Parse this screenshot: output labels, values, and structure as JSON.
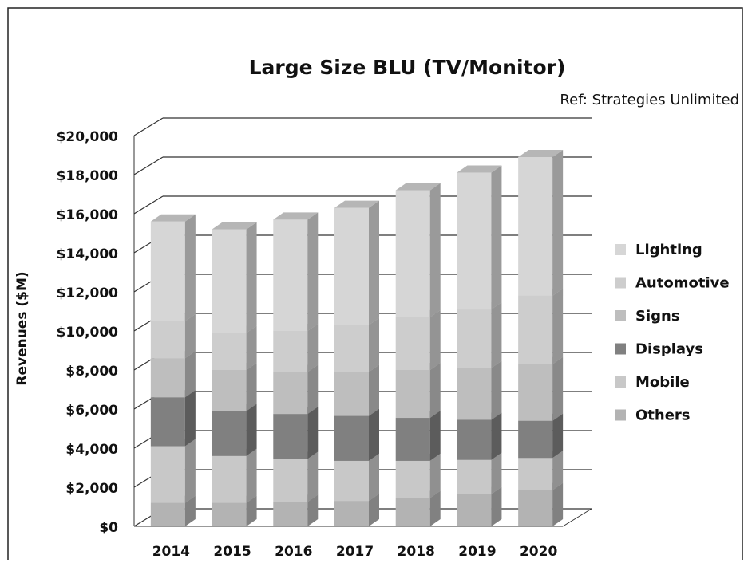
{
  "chart_data": {
    "type": "bar3d_stacked",
    "title": "Large Size BLU (TV/Monitor)",
    "annotation": "Ref: Strategies Unlimited",
    "y_label": "Revenues ($M)",
    "categories": [
      "2014",
      "2015",
      "2016",
      "2017",
      "2018",
      "2019",
      "2020"
    ],
    "series": [
      {
        "name": "Others",
        "color": "#b3b3b3",
        "values": [
          1200,
          1200,
          1250,
          1300,
          1450,
          1650,
          1850
        ]
      },
      {
        "name": "Mobile",
        "color": "#c8c8c8",
        "values": [
          2900,
          2400,
          2200,
          2050,
          1900,
          1750,
          1650
        ]
      },
      {
        "name": "Displays",
        "color": "#808080",
        "values": [
          2500,
          2300,
          2300,
          2300,
          2200,
          2050,
          1900
        ]
      },
      {
        "name": "Signs",
        "color": "#bebebe",
        "values": [
          2000,
          2100,
          2150,
          2250,
          2450,
          2650,
          2900
        ]
      },
      {
        "name": "Automotive",
        "color": "#cdcdcd",
        "values": [
          1900,
          1900,
          2100,
          2400,
          2700,
          3000,
          3500
        ]
      },
      {
        "name": "Lighting",
        "color": "#d6d6d6",
        "values": [
          5100,
          5300,
          5700,
          6000,
          6500,
          7000,
          7100
        ]
      }
    ],
    "ylim": [
      0,
      20000
    ],
    "yticks": [
      {
        "value": 0,
        "label": "$0"
      },
      {
        "value": 2000,
        "label": "$2,000"
      },
      {
        "value": 4000,
        "label": "$4,000"
      },
      {
        "value": 6000,
        "label": "$6,000"
      },
      {
        "value": 8000,
        "label": "$8,000"
      },
      {
        "value": 10000,
        "label": "$10,000"
      },
      {
        "value": 12000,
        "label": "$12,000"
      },
      {
        "value": 14000,
        "label": "$14,000"
      },
      {
        "value": 16000,
        "label": "$16,000"
      },
      {
        "value": 18000,
        "label": "$18,000"
      },
      {
        "value": 20000,
        "label": "$20,000"
      }
    ],
    "grid": true,
    "legend": "right"
  }
}
